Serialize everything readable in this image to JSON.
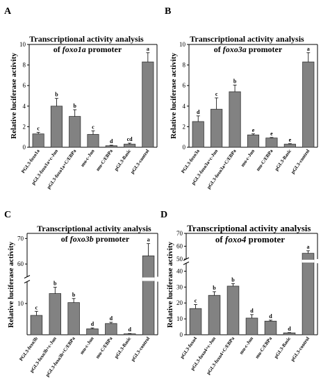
{
  "chart_data": [
    {
      "type": "bar",
      "panel_label": "A",
      "title_prefix": "Transcriptional activity analysis",
      "title_of": "of",
      "title_gene": "foxo1a",
      "title_suffix": "promoter",
      "ylabel": "Relative luciferase activity",
      "ylim": [
        0,
        10
      ],
      "yticks": [
        "0",
        "2",
        "4",
        "6",
        "8",
        "10"
      ],
      "categories": [
        "PGL3-foxo1a",
        "pGL3-foxo1a+c-Jun",
        "pGL3-foxo1a+C/EBPa",
        "mu-c-Jun",
        "mu-C/EBPa",
        "pGL3-Basic",
        "pGL3-control"
      ],
      "values": [
        1.3,
        4.0,
        3.0,
        1.25,
        0.15,
        0.3,
        8.3
      ],
      "errors": [
        0.15,
        0.75,
        0.65,
        0.35,
        0.05,
        0.1,
        0.9
      ],
      "labels": [
        "c",
        "b",
        "b",
        "c",
        "d",
        "cd",
        "a"
      ]
    },
    {
      "type": "bar",
      "panel_label": "B",
      "title_prefix": "Transcriptional activity analysis",
      "title_of": "of",
      "title_gene": "foxo3a",
      "title_suffix": "promoter",
      "ylabel": "Relative luciferase activity",
      "ylim": [
        0,
        10
      ],
      "yticks": [
        "0",
        "2",
        "4",
        "6",
        "8",
        "10"
      ],
      "categories": [
        "PGL3-foxo3a",
        "pGL3-foxo3a+c-Jun",
        "pGL3-foxo3a+C/EBPa",
        "mu-c-Jun",
        "mu-C/EBPa",
        "pGL3-Basic",
        "pGL3-control"
      ],
      "values": [
        2.5,
        3.7,
        5.4,
        1.2,
        0.9,
        0.3,
        8.3
      ],
      "errors": [
        0.55,
        1.1,
        0.65,
        0.1,
        0.05,
        0.05,
        0.9
      ],
      "labels": [
        "d",
        "c",
        "b",
        "e",
        "e",
        "e",
        "a"
      ]
    },
    {
      "type": "bar",
      "panel_label": "C",
      "title_prefix": "Transcriptional activity analysis",
      "title_of": "of",
      "title_gene": "foxo3b",
      "title_suffix": "promoter",
      "ylabel": "Relative luciferase activity",
      "y_axis_break": true,
      "ylim_lower": [
        0,
        17
      ],
      "ylim_upper": [
        55,
        72
      ],
      "yticks": [
        "10",
        "60",
        "70"
      ],
      "categories": [
        "PGL3-foxo3b",
        "pGL3-foxo3b+c-Jun",
        "pGL3-foxo3b+C/EBPa",
        "mu-c-Jun",
        "mu-C/EBPa",
        "pGL3-Basic",
        "pGL3-control"
      ],
      "values": [
        6.2,
        13.2,
        10.3,
        1.9,
        3.6,
        0.3,
        63.2
      ],
      "errors": [
        1.3,
        2.0,
        1.3,
        0.3,
        0.4,
        0.1,
        4.8
      ],
      "labels": [
        "c",
        "b",
        "b",
        "d",
        "d",
        "d",
        "a"
      ]
    },
    {
      "type": "bar",
      "panel_label": "D",
      "title_prefix": "Transcriptional activity analysis",
      "title_of": "of",
      "title_gene": "foxo4",
      "title_suffix": "promoter",
      "ylabel": "Relative luciferase activity",
      "y_axis_break": true,
      "ylim_lower": [
        0,
        45
      ],
      "ylim_upper": [
        50,
        70
      ],
      "yticks": [
        "0",
        "10",
        "20",
        "30",
        "40",
        "50",
        "60",
        "70"
      ],
      "categories": [
        "pGL3-foxo4",
        "pGL3-foxo4+c-Jun",
        "pGL3-foxo4+C/EBPa",
        "mu-c-Jun",
        "mu-C/EBPa",
        "pGL3-Basic",
        "pGL3-control"
      ],
      "values": [
        16.5,
        24.8,
        30.6,
        10.5,
        8.6,
        1.2,
        54.5
      ],
      "errors": [
        2.5,
        2.3,
        1.6,
        2.2,
        0.6,
        0.2,
        2.0
      ],
      "labels": [
        "c",
        "b",
        "b",
        "d",
        "d",
        "d",
        "a"
      ]
    }
  ]
}
